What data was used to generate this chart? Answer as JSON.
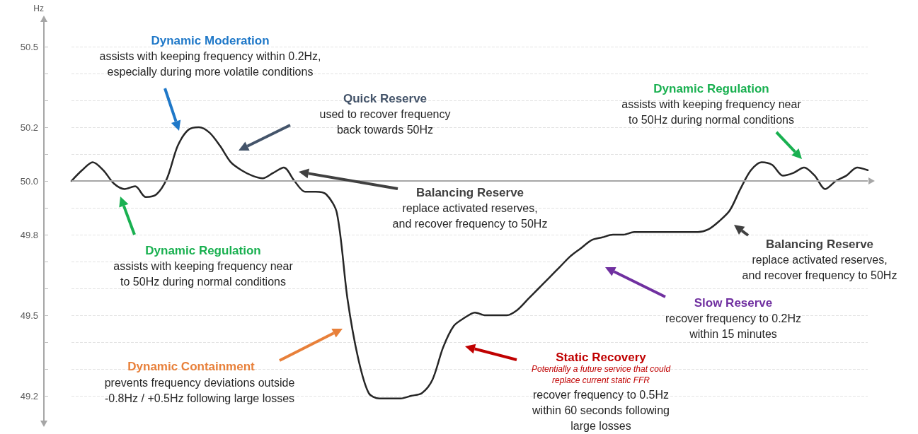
{
  "chart_data": {
    "type": "line",
    "ylabel": "Hz",
    "categories": [
      null,
      null,
      null,
      null,
      null,
      null,
      null,
      null,
      null,
      null,
      null,
      null,
      null,
      null,
      null,
      null,
      null,
      null,
      null,
      null,
      null,
      null,
      null,
      null,
      null,
      null,
      null,
      null,
      null,
      null,
      null,
      null,
      null,
      null,
      null,
      null,
      null,
      null,
      null,
      null,
      null,
      null,
      null,
      null,
      null,
      null,
      null,
      null,
      null,
      null,
      null,
      null,
      null,
      null,
      null,
      null,
      null,
      null,
      null,
      null,
      null,
      null,
      null,
      null,
      null,
      null,
      null,
      null,
      null,
      null,
      null,
      null,
      null,
      null,
      null,
      null
    ],
    "series": [
      {
        "color": "#262626",
        "values": [
          50.0,
          50.04,
          50.07,
          50.04,
          49.99,
          49.97,
          49.98,
          49.94,
          49.95,
          50.01,
          50.13,
          50.19,
          50.2,
          50.18,
          50.13,
          50.07,
          50.04,
          50.02,
          50.01,
          50.03,
          50.05,
          50.0,
          49.96,
          49.96,
          49.95,
          49.88,
          49.56,
          49.34,
          49.21,
          49.19,
          49.19,
          49.19,
          49.2,
          49.21,
          49.26,
          49.38,
          49.46,
          49.49,
          49.51,
          49.5,
          49.5,
          49.5,
          49.52,
          49.56,
          49.6,
          49.64,
          49.68,
          49.72,
          49.75,
          49.78,
          49.79,
          49.8,
          49.8,
          49.81,
          49.81,
          49.81,
          49.81,
          49.81,
          49.81,
          49.81,
          49.82,
          49.85,
          49.89,
          49.97,
          50.04,
          50.07,
          50.06,
          50.02,
          50.03,
          50.05,
          50.02,
          49.97,
          50.0,
          50.02,
          50.05,
          50.04
        ]
      }
    ],
    "ylim": [
      49.1,
      50.6
    ],
    "yticks": [
      {
        "value": 49.2,
        "label": "49.2"
      },
      {
        "value": 49.3,
        "label": null
      },
      {
        "value": 49.4,
        "label": null
      },
      {
        "value": 49.5,
        "label": "49.5"
      },
      {
        "value": 49.6,
        "label": null
      },
      {
        "value": 49.7,
        "label": null
      },
      {
        "value": 49.8,
        "label": "49.8"
      },
      {
        "value": 49.9,
        "label": null
      },
      {
        "value": 50.0,
        "label": "50.0"
      },
      {
        "value": 50.1,
        "label": null
      },
      {
        "value": 50.2,
        "label": "50.2"
      },
      {
        "value": 50.3,
        "label": null
      },
      {
        "value": 50.4,
        "label": null
      },
      {
        "value": 50.5,
        "label": "50.5"
      }
    ],
    "ref_lines": [
      {
        "axis": "y",
        "value": 50.0,
        "label": null,
        "color": "#a6a6a6"
      }
    ],
    "grid": "y",
    "tick_labels": "y",
    "marker": "none",
    "line_style": "solid",
    "annotations": [
      "Dynamic Moderation",
      "assists with keeping frequency within 0.2Hz,\nespecially during more volatile conditions",
      "Quick Reserve",
      "used to recover frequency\nback towards 50Hz",
      "Balancing Reserve",
      "replace activated reserves,\nand recover frequency to 50Hz",
      "Dynamic Regulation",
      "assists with keeping frequency near\nto 50Hz during normal conditions",
      "Dynamic Containment",
      "prevents frequency deviations outside\n-0.8Hz / +0.5Hz following large losses",
      "Static Recovery",
      "Potentially a future service that could\nreplace current static FFR",
      "recover frequency to 0.5Hz\nwithin 60 seconds following\nlarge losses",
      "Slow Reserve",
      "recover frequency to 0.2Hz\nwithin 15 minutes",
      "Dynamic Regulation",
      "assists with keeping frequency near\nto 50Hz during normal conditions",
      "Balancing Reserve",
      "replace activated reserves,\nand recover frequency to 50Hz"
    ]
  }
}
